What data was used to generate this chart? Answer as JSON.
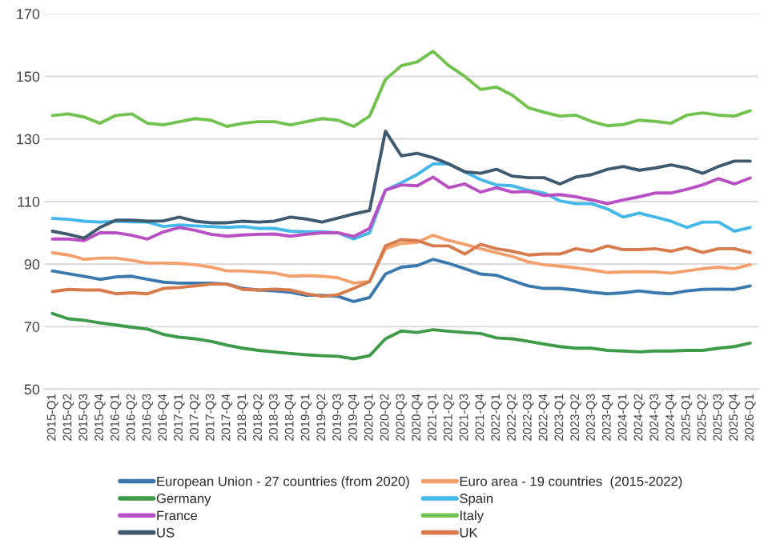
{
  "chart_data": {
    "type": "line",
    "categories": [
      "2015-Q1",
      "2015-Q2",
      "2015-Q3",
      "2015-Q4",
      "2016-Q1",
      "2016-Q2",
      "2016-Q3",
      "2016-Q4",
      "2017-Q1",
      "2017-Q2",
      "2017-Q3",
      "2017-Q4",
      "2018-Q1",
      "2018-Q2",
      "2018-Q3",
      "2018-Q4",
      "2019-Q1",
      "2019-Q2",
      "2019-Q3",
      "2019-Q4",
      "2020-Q1",
      "2020-Q2",
      "2020-Q3",
      "2020-Q4",
      "2021-Q1",
      "2021-Q2",
      "2021-Q3",
      "2021-Q4",
      "2022-Q1",
      "2022-Q2",
      "2022-Q3",
      "2022-Q4",
      "2023-Q1",
      "2023-Q2",
      "2023-Q3",
      "2023-Q4",
      "2024-Q1",
      "2024-Q2",
      "2024-Q3",
      "2024-Q4",
      "2025-Q1",
      "2025-Q2",
      "2025-Q3",
      "2025-Q4",
      "2026-Q1"
    ],
    "series": [
      {
        "name": "European Union - 27 countries (from 2020)",
        "color": "#3b78ad",
        "values": [
          87.8,
          86.9,
          86.1,
          85.1,
          85.9,
          86.1,
          85.1,
          84.2,
          83.9,
          83.9,
          83.9,
          83.6,
          82.2,
          81.7,
          81.4,
          81,
          80,
          80,
          79.7,
          78,
          79.3,
          86.8,
          89,
          89.5,
          91.5,
          90.2,
          88.5,
          86.8,
          86.4,
          84.7,
          83,
          82.2,
          82.2,
          81.7,
          81,
          80.5,
          80.8,
          81.4,
          80.8,
          80.5,
          81.4,
          81.9,
          82,
          81.9,
          83
        ]
      },
      {
        "name": "Euro area - 19 countries  (2015-2022)",
        "color": "#f4a06c",
        "values": [
          93.6,
          92.9,
          91.5,
          91.9,
          91.9,
          91.2,
          90.3,
          90.3,
          90.2,
          89.8,
          89,
          87.8,
          87.8,
          87.5,
          87.1,
          86.1,
          86.3,
          86.1,
          85.6,
          83.9,
          84.4,
          94.9,
          96.6,
          96.9,
          99.2,
          97.5,
          96.3,
          94.9,
          93.6,
          92.4,
          90.7,
          89.8,
          89.3,
          88.8,
          88.1,
          87.3,
          87.5,
          87.6,
          87.5,
          87.1,
          87.8,
          88.5,
          89,
          88.5,
          89.8
        ]
      },
      {
        "name": "Germany",
        "color": "#3c9a49",
        "values": [
          74.2,
          72.5,
          72,
          71.2,
          70.5,
          69.8,
          69.2,
          67.5,
          66.6,
          66.1,
          65.3,
          64.1,
          63.1,
          62.4,
          61.9,
          61.4,
          61,
          60.7,
          60.5,
          59.7,
          60.7,
          66.1,
          68.6,
          68.1,
          69,
          68.5,
          68.1,
          67.8,
          66.4,
          66.1,
          65.3,
          64.4,
          63.6,
          63.1,
          63.1,
          62.4,
          62.2,
          61.9,
          62.2,
          62.2,
          62.4,
          62.4,
          63.1,
          63.6,
          64.7
        ]
      },
      {
        "name": "Spain",
        "color": "#44b8e8",
        "values": [
          104.6,
          104.3,
          103.7,
          103.4,
          103.7,
          103.5,
          103.4,
          102,
          102.5,
          102.2,
          102,
          101.7,
          102,
          101.4,
          101.4,
          100.5,
          100.3,
          100.3,
          100,
          98,
          100,
          113.6,
          116,
          118.6,
          122,
          122,
          119.5,
          117,
          115.3,
          115,
          113.6,
          112.7,
          110.2,
          109.3,
          109.3,
          107.6,
          105,
          106.3,
          105,
          103.7,
          101.7,
          103.4,
          103.4,
          100.5,
          101.7
        ]
      },
      {
        "name": "France",
        "color": "#b84fc3",
        "values": [
          98,
          98,
          97.5,
          100,
          100,
          99.2,
          98,
          100.3,
          101.7,
          100.8,
          99.5,
          98.9,
          99.3,
          99.5,
          99.6,
          98.9,
          99.5,
          100,
          100,
          98.8,
          101.4,
          113.6,
          115.3,
          115,
          117.8,
          114.4,
          115.6,
          113,
          114.4,
          113,
          113.2,
          111.9,
          112.2,
          111.5,
          110.5,
          109.3,
          110.5,
          111.5,
          112.7,
          112.7,
          113.9,
          115.3,
          117.3,
          115.6,
          117.5
        ]
      },
      {
        "name": "Italy",
        "color": "#72c24f",
        "values": [
          137.5,
          138,
          137,
          135,
          137.5,
          138,
          135,
          134.5,
          135.5,
          136.5,
          136,
          134,
          135,
          135.5,
          135.5,
          134.5,
          135.5,
          136.5,
          136,
          134,
          137.3,
          149,
          153.4,
          154.6,
          158,
          153.4,
          150,
          145.8,
          146.6,
          144,
          140,
          138.5,
          137.3,
          137.6,
          135.6,
          134.2,
          134.6,
          136,
          135.6,
          135,
          137.6,
          138.3,
          137.6,
          137.3,
          139
        ]
      },
      {
        "name": "US",
        "color": "#3f5a6e",
        "values": [
          100.5,
          99.5,
          98.3,
          101.7,
          104,
          104,
          103.7,
          103.8,
          105,
          103.7,
          103.2,
          103.2,
          103.7,
          103.4,
          103.7,
          105,
          104.4,
          103.4,
          104.7,
          106,
          107.1,
          132.5,
          124.6,
          125.4,
          124,
          122,
          119.5,
          119,
          120.3,
          118.1,
          117.6,
          117.6,
          115.6,
          117.8,
          118.6,
          120.3,
          121.2,
          120,
          120.7,
          121.7,
          120.7,
          119,
          121.2,
          122.9,
          122.9
        ]
      },
      {
        "name": "UK",
        "color": "#d77b4c",
        "values": [
          81.2,
          81.9,
          81.7,
          81.7,
          80.5,
          80.8,
          80.5,
          82.2,
          82.5,
          83,
          83.6,
          83.6,
          81.9,
          81.7,
          82,
          81.7,
          80.5,
          79.7,
          80.2,
          82.2,
          84.4,
          95.8,
          97.8,
          97.5,
          95.8,
          95.8,
          93.2,
          96.3,
          94.9,
          94.1,
          92.9,
          93.2,
          93.2,
          94.9,
          94.1,
          95.8,
          94.6,
          94.6,
          94.9,
          94.1,
          95.3,
          93.7,
          94.9,
          94.9,
          93.7
        ]
      }
    ],
    "ylim": [
      50,
      170
    ],
    "yticks": [
      50,
      70,
      90,
      110,
      130,
      150,
      170
    ],
    "grid": "y",
    "legend": "bottom",
    "marker": "none",
    "line_style": "solid"
  }
}
